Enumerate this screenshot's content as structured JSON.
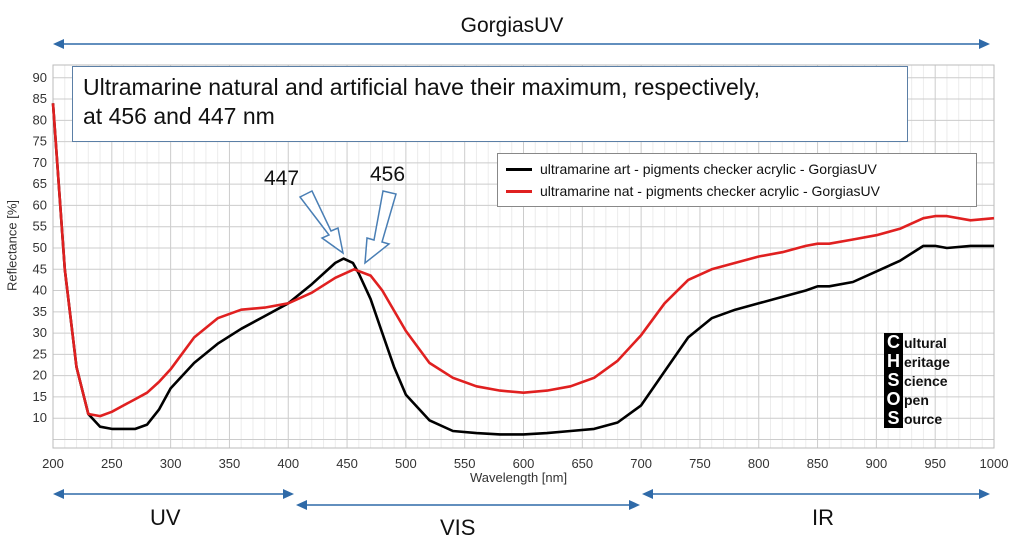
{
  "title": "GorgiasUV",
  "annotation": {
    "line1": "Ultramarine natural and artificial have their maximum, respectively,",
    "line2": "at 456 and 447 nm"
  },
  "peaks": {
    "art": "447",
    "nat": "456"
  },
  "ranges": {
    "uv": "UV",
    "vis": "VIS",
    "ir": "IR"
  },
  "logo": [
    {
      "letter": "C",
      "rest": "ultural"
    },
    {
      "letter": "H",
      "rest": "eritage"
    },
    {
      "letter": "S",
      "rest": "cience"
    },
    {
      "letter": "O",
      "rest": "pen"
    },
    {
      "letter": "S",
      "rest": "ource"
    }
  ],
  "colors": {
    "art": "#000000",
    "nat": "#e02020",
    "arrow": "#2f6aa8"
  },
  "chart_data": {
    "type": "line",
    "xlabel": "Wavelength [nm]",
    "ylabel": "Reflectance [%]",
    "xlim": [
      200,
      1000
    ],
    "ylim": [
      3,
      93
    ],
    "xticks": [
      200,
      250,
      300,
      350,
      400,
      450,
      500,
      550,
      600,
      650,
      700,
      750,
      800,
      850,
      900,
      950,
      1000
    ],
    "yticks": [
      10,
      15,
      20,
      25,
      30,
      35,
      40,
      45,
      50,
      55,
      60,
      65,
      70,
      75,
      80,
      85,
      90
    ],
    "grid": true,
    "legend_position": "top-right",
    "series": [
      {
        "name": "ultramarine art - pigments checker acrylic - GorgiasUV",
        "color": "#000000",
        "x": [
          200,
          210,
          220,
          230,
          240,
          250,
          260,
          270,
          280,
          290,
          300,
          320,
          340,
          360,
          380,
          400,
          420,
          440,
          447,
          455,
          460,
          470,
          480,
          490,
          500,
          520,
          540,
          560,
          580,
          600,
          620,
          640,
          660,
          680,
          700,
          720,
          740,
          760,
          780,
          800,
          820,
          840,
          850,
          860,
          880,
          900,
          920,
          940,
          950,
          960,
          980,
          1000
        ],
        "y": [
          84,
          45,
          22,
          11,
          8,
          7.5,
          7.5,
          7.5,
          8.5,
          12,
          17,
          23,
          27.5,
          31,
          34,
          37,
          41.5,
          46.5,
          47.5,
          46.5,
          44,
          38,
          30,
          22,
          15.5,
          9.5,
          7,
          6.5,
          6.2,
          6.2,
          6.5,
          7,
          7.5,
          9,
          13,
          21,
          29,
          33.5,
          35.5,
          37,
          38.5,
          40,
          41,
          41,
          42,
          44.5,
          47,
          50.5,
          50.5,
          50,
          50.5,
          50.5
        ]
      },
      {
        "name": "ultramarine nat - pigments checker acrylic - GorgiasUV",
        "color": "#e02020",
        "x": [
          200,
          210,
          220,
          230,
          240,
          250,
          260,
          270,
          280,
          290,
          300,
          320,
          340,
          360,
          380,
          400,
          420,
          440,
          456,
          470,
          480,
          500,
          520,
          540,
          560,
          580,
          600,
          620,
          640,
          660,
          680,
          700,
          720,
          740,
          760,
          780,
          800,
          820,
          840,
          850,
          860,
          880,
          900,
          920,
          940,
          950,
          960,
          980,
          1000
        ],
        "y": [
          84,
          45,
          22,
          11,
          10.5,
          11.5,
          13,
          14.5,
          16,
          18.5,
          21.5,
          29,
          33.5,
          35.5,
          36,
          37,
          39.5,
          43,
          45,
          43.5,
          40,
          30.5,
          23,
          19.5,
          17.5,
          16.5,
          16,
          16.5,
          17.5,
          19.5,
          23.5,
          29.5,
          37,
          42.5,
          45,
          46.5,
          48,
          49,
          50.5,
          51,
          51,
          52,
          53,
          54.5,
          57,
          57.5,
          57.5,
          56.5,
          57
        ]
      }
    ]
  }
}
